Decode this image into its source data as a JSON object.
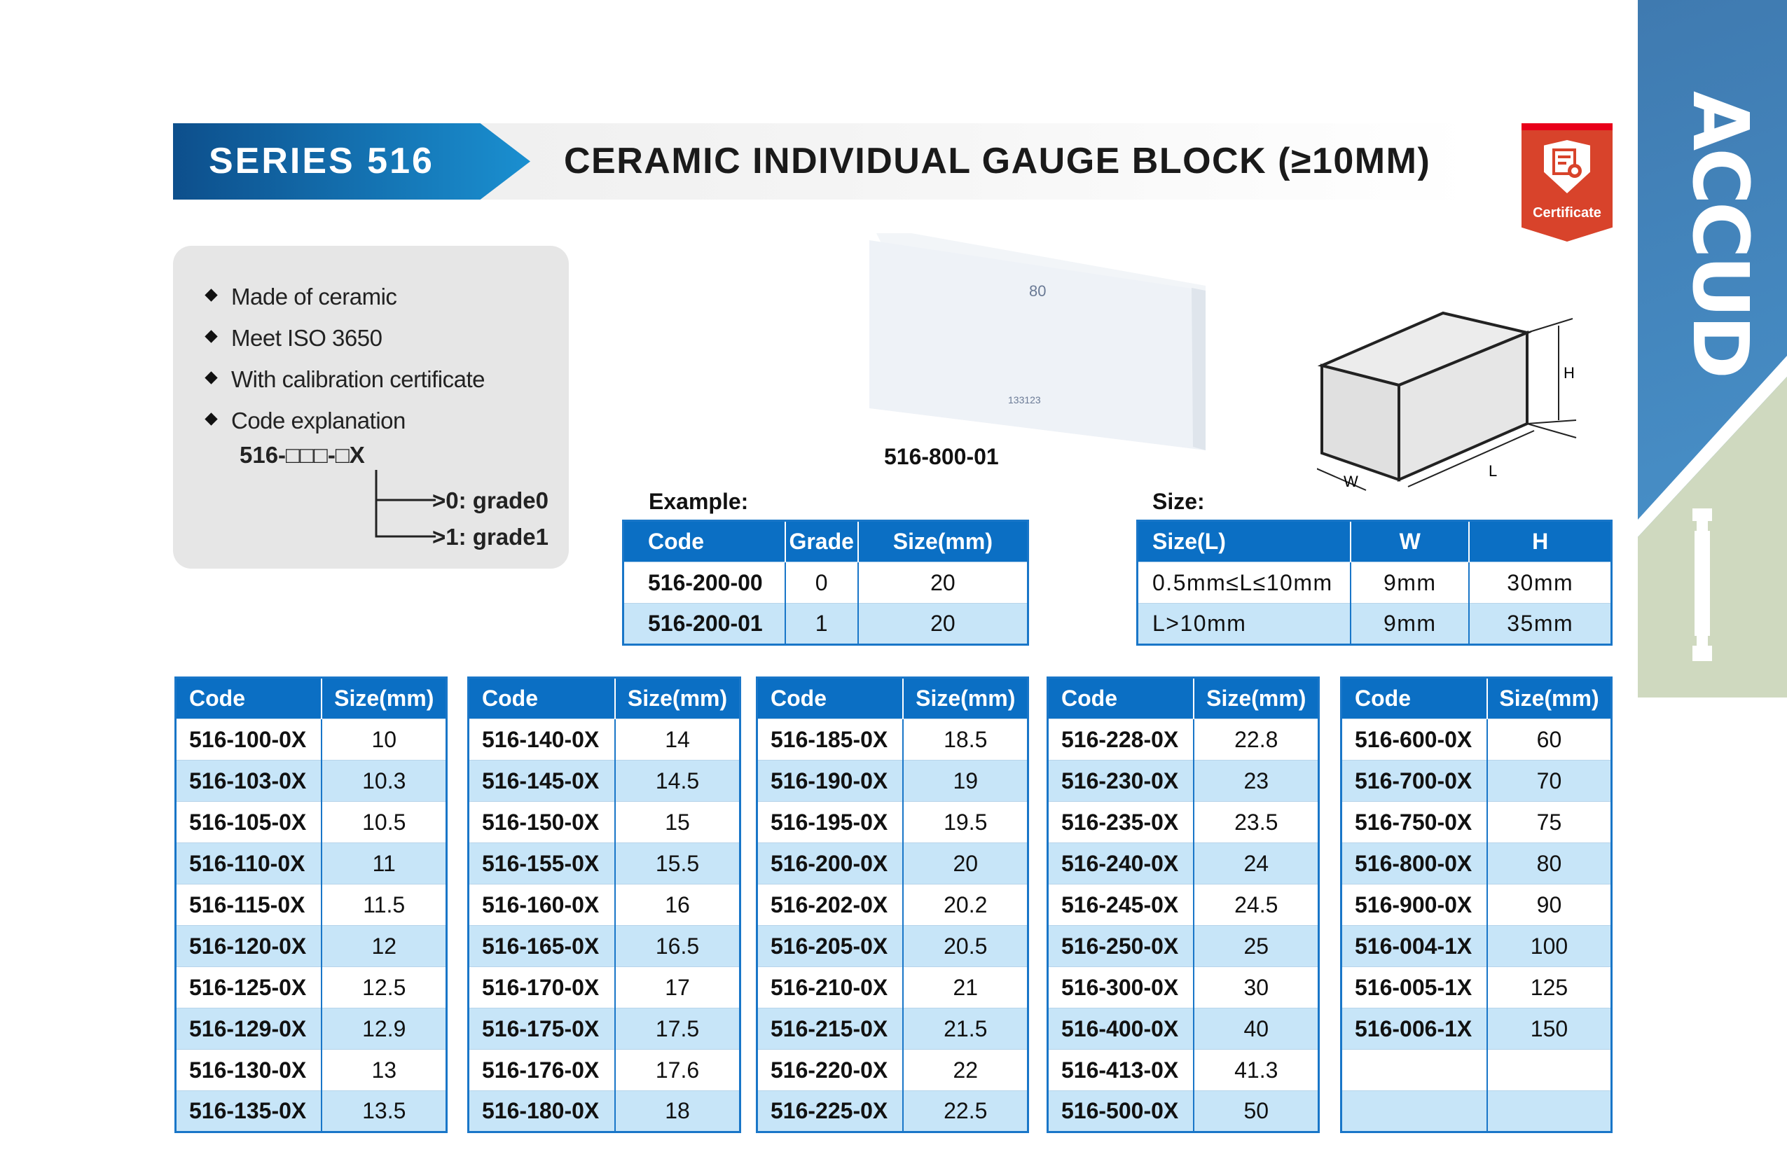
{
  "header": {
    "series": "SERIES 516",
    "title": "CERAMIC INDIVIDUAL GAUGE BLOCK (≥10MM)"
  },
  "badge": {
    "label": "Certificate",
    "icon": "certificate-shield-icon"
  },
  "brand": {
    "logo": "ACCUD"
  },
  "features": {
    "items": [
      "Made of ceramic",
      "Meet ISO 3650",
      "With calibration certificate",
      "Code explanation"
    ],
    "code_pattern": "516-□□□-□X",
    "grade0": ">0: grade0",
    "grade1": ">1: grade1"
  },
  "product": {
    "label": "516-800-01",
    "marking_size": "80",
    "marking_serial": "133123"
  },
  "diagram": {
    "h": "H",
    "l": "L",
    "w": "W"
  },
  "example": {
    "title": "Example:",
    "headers": [
      "Code",
      "Grade",
      "Size(mm)"
    ],
    "rows": [
      [
        "516-200-00",
        "0",
        "20"
      ],
      [
        "516-200-01",
        "1",
        "20"
      ]
    ]
  },
  "size": {
    "title": "Size:",
    "headers": [
      "Size(L)",
      "W",
      "H"
    ],
    "rows": [
      [
        "0.5mm≤L≤10mm",
        "9mm",
        "30mm"
      ],
      [
        "L>10mm",
        "9mm",
        "35mm"
      ]
    ]
  },
  "tables": [
    {
      "headers": [
        "Code",
        "Size(mm)"
      ],
      "rows": [
        [
          "516-100-0X",
          "10"
        ],
        [
          "516-103-0X",
          "10.3"
        ],
        [
          "516-105-0X",
          "10.5"
        ],
        [
          "516-110-0X",
          "11"
        ],
        [
          "516-115-0X",
          "11.5"
        ],
        [
          "516-120-0X",
          "12"
        ],
        [
          "516-125-0X",
          "12.5"
        ],
        [
          "516-129-0X",
          "12.9"
        ],
        [
          "516-130-0X",
          "13"
        ],
        [
          "516-135-0X",
          "13.5"
        ]
      ]
    },
    {
      "headers": [
        "Code",
        "Size(mm)"
      ],
      "rows": [
        [
          "516-140-0X",
          "14"
        ],
        [
          "516-145-0X",
          "14.5"
        ],
        [
          "516-150-0X",
          "15"
        ],
        [
          "516-155-0X",
          "15.5"
        ],
        [
          "516-160-0X",
          "16"
        ],
        [
          "516-165-0X",
          "16.5"
        ],
        [
          "516-170-0X",
          "17"
        ],
        [
          "516-175-0X",
          "17.5"
        ],
        [
          "516-176-0X",
          "17.6"
        ],
        [
          "516-180-0X",
          "18"
        ]
      ]
    },
    {
      "headers": [
        "Code",
        "Size(mm)"
      ],
      "rows": [
        [
          "516-185-0X",
          "18.5"
        ],
        [
          "516-190-0X",
          "19"
        ],
        [
          "516-195-0X",
          "19.5"
        ],
        [
          "516-200-0X",
          "20"
        ],
        [
          "516-202-0X",
          "20.2"
        ],
        [
          "516-205-0X",
          "20.5"
        ],
        [
          "516-210-0X",
          "21"
        ],
        [
          "516-215-0X",
          "21.5"
        ],
        [
          "516-220-0X",
          "22"
        ],
        [
          "516-225-0X",
          "22.5"
        ]
      ]
    },
    {
      "headers": [
        "Code",
        "Size(mm)"
      ],
      "rows": [
        [
          "516-228-0X",
          "22.8"
        ],
        [
          "516-230-0X",
          "23"
        ],
        [
          "516-235-0X",
          "23.5"
        ],
        [
          "516-240-0X",
          "24"
        ],
        [
          "516-245-0X",
          "24.5"
        ],
        [
          "516-250-0X",
          "25"
        ],
        [
          "516-300-0X",
          "30"
        ],
        [
          "516-400-0X",
          "40"
        ],
        [
          "516-413-0X",
          "41.3"
        ],
        [
          "516-500-0X",
          "50"
        ]
      ]
    },
    {
      "headers": [
        "Code",
        "Size(mm)"
      ],
      "rows": [
        [
          "516-600-0X",
          "60"
        ],
        [
          "516-700-0X",
          "70"
        ],
        [
          "516-750-0X",
          "75"
        ],
        [
          "516-800-0X",
          "80"
        ],
        [
          "516-900-0X",
          "90"
        ],
        [
          "516-004-1X",
          "100"
        ],
        [
          "516-005-1X",
          "125"
        ],
        [
          "516-006-1X",
          "150"
        ],
        [
          "",
          ""
        ],
        [
          "",
          ""
        ]
      ]
    }
  ]
}
